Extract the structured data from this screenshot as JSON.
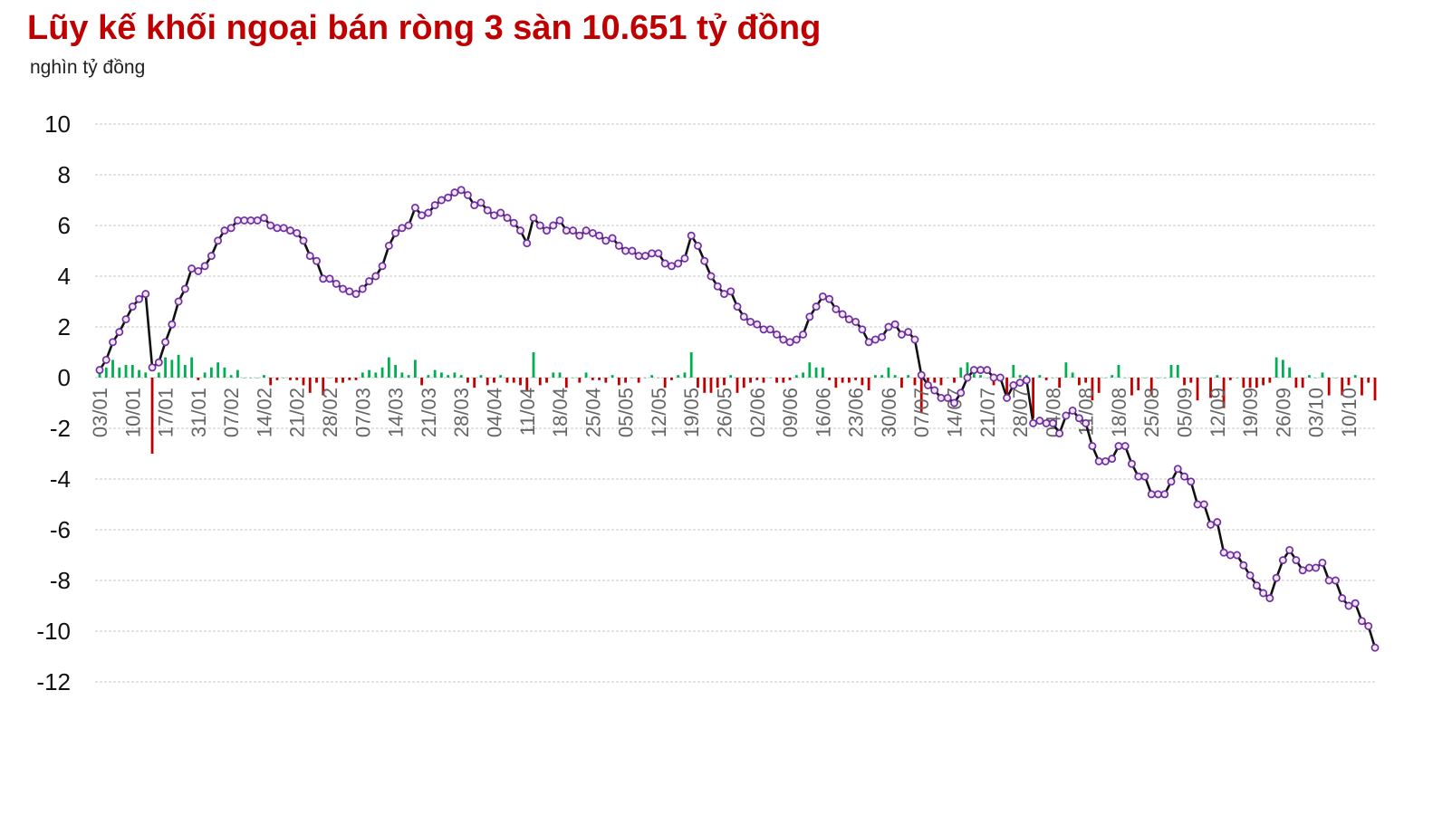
{
  "title": "Lũy kế khối ngoại bán ròng 3 sàn 10.651 tỷ đồng",
  "unit_label": "nghìn tỷ đồng",
  "colors": {
    "title": "#c00000",
    "line": "#111111",
    "marker_stroke": "#7030a0",
    "marker_fill": "#efe7f7",
    "bar_positive": "#00b050",
    "bar_negative": "#c00000",
    "grid": "#c8c8c8"
  },
  "chart_data": {
    "type": "line",
    "title": "Lũy kế khối ngoại bán ròng 3 sàn 10.651 tỷ đồng",
    "ylabel": "nghìn tỷ đồng",
    "ylim": [
      -12,
      10
    ],
    "yticks": [
      10,
      8,
      6,
      4,
      2,
      0,
      -2,
      -4,
      -6,
      -8,
      -10,
      -12
    ],
    "grid": true,
    "x_tick_labels": [
      "03/01",
      "10/01",
      "17/01",
      "31/01",
      "07/02",
      "14/02",
      "21/02",
      "28/02",
      "07/03",
      "14/03",
      "21/03",
      "28/03",
      "04/04",
      "11/04",
      "18/04",
      "25/04",
      "05/05",
      "12/05",
      "19/05",
      "26/05",
      "02/06",
      "09/06",
      "16/06",
      "23/06",
      "30/06",
      "07/07",
      "14/07",
      "21/07",
      "28/07",
      "04/08",
      "11/08",
      "18/08",
      "25/08",
      "05/09",
      "12/09",
      "19/09",
      "26/09",
      "03/10",
      "10/10"
    ],
    "x_tick_index": [
      0,
      5,
      10,
      15,
      20,
      25,
      30,
      35,
      40,
      45,
      50,
      55,
      60,
      65,
      70,
      75,
      80,
      85,
      90,
      95,
      100,
      105,
      110,
      115,
      120,
      125,
      130,
      135,
      140,
      145,
      150,
      155,
      160,
      165,
      170,
      175,
      180,
      185,
      190
    ],
    "series": [
      {
        "kind": "line",
        "values": [
          0.3,
          0.7,
          1.4,
          1.8,
          2.3,
          2.8,
          3.1,
          3.3,
          0.4,
          0.6,
          1.4,
          2.1,
          3.0,
          3.5,
          4.3,
          4.2,
          4.4,
          4.8,
          5.4,
          5.8,
          5.9,
          6.2,
          6.2,
          6.2,
          6.2,
          6.3,
          6.0,
          5.9,
          5.9,
          5.8,
          5.7,
          5.4,
          4.8,
          4.6,
          3.9,
          3.9,
          3.7,
          3.5,
          3.4,
          3.3,
          3.5,
          3.8,
          4.0,
          4.4,
          5.2,
          5.7,
          5.9,
          6.0,
          6.7,
          6.4,
          6.5,
          6.8,
          7.0,
          7.1,
          7.3,
          7.4,
          7.2,
          6.8,
          6.9,
          6.6,
          6.4,
          6.5,
          6.3,
          6.1,
          5.8,
          5.3,
          6.3,
          6.0,
          5.8,
          6.0,
          6.2,
          5.8,
          5.8,
          5.6,
          5.8,
          5.7,
          5.6,
          5.4,
          5.5,
          5.2,
          5.0,
          5.0,
          4.8,
          4.8,
          4.9,
          4.9,
          4.5,
          4.4,
          4.5,
          4.7,
          5.6,
          5.2,
          4.6,
          4.0,
          3.6,
          3.3,
          3.4,
          2.8,
          2.4,
          2.2,
          2.1,
          1.9,
          1.9,
          1.7,
          1.5,
          1.4,
          1.5,
          1.7,
          2.4,
          2.8,
          3.2,
          3.1,
          2.7,
          2.5,
          2.3,
          2.2,
          1.9,
          1.4,
          1.5,
          1.6,
          2.0,
          2.1,
          1.7,
          1.8,
          1.5,
          0.1,
          -0.3,
          -0.5,
          -0.8,
          -0.8,
          -1.0,
          -0.6,
          0.0,
          0.3,
          0.3,
          0.3,
          0.0,
          0.0,
          -0.8,
          -0.3,
          -0.2,
          -0.1,
          -1.8,
          -1.7,
          -1.8,
          -1.8,
          -2.2,
          -1.5,
          -1.3,
          -1.6,
          -1.8,
          -2.7,
          -3.3,
          -3.3,
          -3.2,
          -2.7,
          -2.7,
          -3.4,
          -3.9,
          -3.9,
          -4.6,
          -4.6,
          -4.6,
          -4.1,
          -3.6,
          -3.9,
          -4.1,
          -5.0,
          -5.0,
          -5.8,
          -5.7,
          -6.9,
          -7.0,
          -7.0,
          -7.4,
          -7.8,
          -8.2,
          -8.5,
          -8.7,
          -7.9,
          -7.2,
          -6.8,
          -7.2,
          -7.6,
          -7.5,
          -7.5,
          -7.3,
          -8.0,
          -8.0,
          -8.7,
          -9.0,
          -8.9,
          -9.6,
          -9.8,
          -10.651
        ]
      },
      {
        "kind": "bar",
        "values": [
          0.3,
          0.4,
          0.7,
          0.4,
          0.5,
          0.5,
          0.3,
          0.2,
          -3.0,
          0.2,
          0.8,
          0.7,
          0.9,
          0.5,
          0.8,
          -0.1,
          0.2,
          0.4,
          0.6,
          0.4,
          0.1,
          0.3,
          0.0,
          0.0,
          0.0,
          0.1,
          -0.3,
          -0.1,
          0.0,
          -0.1,
          -0.1,
          -0.3,
          -0.6,
          -0.2,
          -0.7,
          0.0,
          -0.2,
          -0.2,
          -0.1,
          -0.1,
          0.2,
          0.3,
          0.2,
          0.4,
          0.8,
          0.5,
          0.2,
          0.1,
          0.7,
          -0.3,
          0.1,
          0.3,
          0.2,
          0.1,
          0.2,
          0.1,
          -0.2,
          -0.4,
          0.1,
          -0.3,
          -0.2,
          0.1,
          -0.2,
          -0.2,
          -0.3,
          -0.5,
          1.0,
          -0.3,
          -0.2,
          0.2,
          0.2,
          -0.4,
          0.0,
          -0.2,
          0.2,
          -0.1,
          -0.1,
          -0.2,
          0.1,
          -0.3,
          -0.2,
          0.0,
          -0.2,
          0.0,
          0.1,
          0.0,
          -0.4,
          -0.1,
          0.1,
          0.2,
          1.0,
          -0.4,
          -0.6,
          -0.6,
          -0.4,
          -0.3,
          0.1,
          -0.6,
          -0.4,
          -0.2,
          -0.1,
          -0.2,
          0.0,
          -0.2,
          -0.2,
          -0.1,
          0.1,
          0.2,
          0.6,
          0.4,
          0.4,
          -0.1,
          -0.4,
          -0.2,
          -0.2,
          -0.1,
          -0.3,
          -0.5,
          0.1,
          0.1,
          0.4,
          0.1,
          -0.4,
          0.1,
          -0.3,
          -1.4,
          -0.4,
          -0.2,
          -0.3,
          0.0,
          -0.2,
          0.4,
          0.6,
          0.3,
          0.1,
          0.0,
          -0.3,
          0.0,
          -0.8,
          0.5,
          0.1,
          0.1,
          -1.6,
          0.1,
          -0.1,
          0.0,
          -0.4,
          0.6,
          0.2,
          -0.3,
          -0.2,
          -0.9,
          -0.6,
          0.0,
          0.1,
          0.5,
          0.0,
          -0.7,
          -0.5,
          0.0,
          -0.7,
          0.0,
          0.0,
          0.5,
          0.5,
          -0.3,
          -0.2,
          -0.9,
          0.0,
          -0.8,
          0.1,
          -1.2,
          -0.1,
          0.0,
          -0.4,
          -0.4,
          -0.4,
          -0.3,
          -0.2,
          0.8,
          0.7,
          0.4,
          -0.4,
          -0.4,
          0.1,
          0.0,
          0.2,
          -0.7,
          0.0,
          -0.7,
          -0.3,
          0.1,
          -0.7,
          -0.2,
          -0.9
        ]
      }
    ]
  }
}
